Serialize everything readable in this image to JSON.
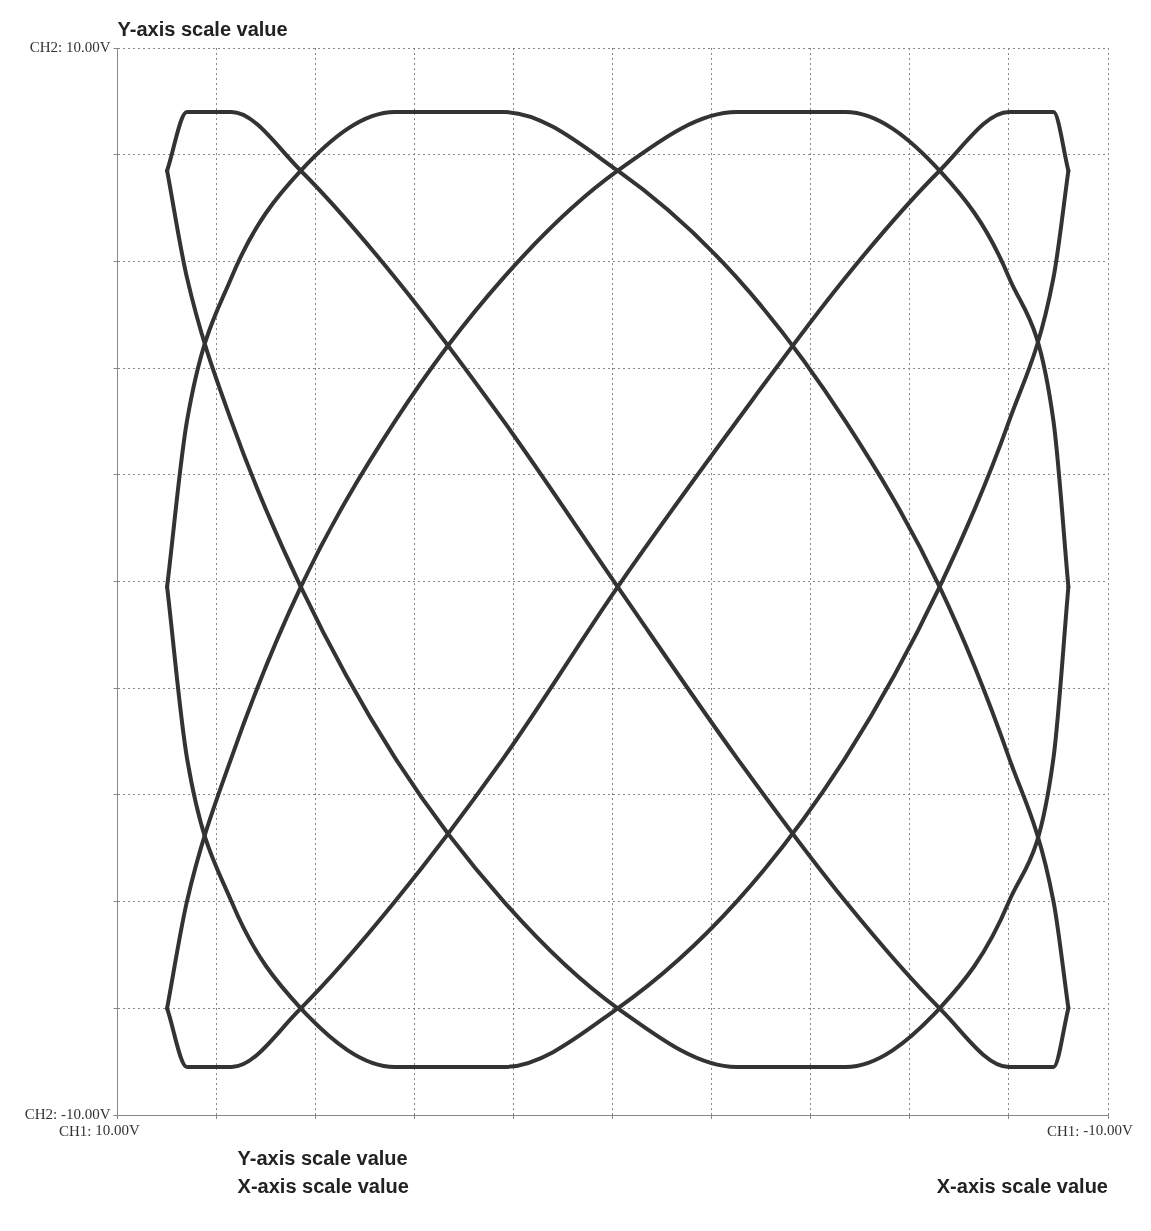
{
  "chart_data": {
    "type": "line",
    "x": [
      -9.2,
      -8.9,
      -8.0,
      -6.6,
      -4.7,
      -2.5,
      -0.1,
      2.2,
      4.4,
      6.3,
      7.7,
      8.6,
      9.0
    ],
    "series": [
      {
        "color": "#333333",
        "values": [
          -8.0,
          -9.1,
          -9.1,
          -8.0,
          -6.0,
          -3.3,
          -0.1,
          3.0,
          5.7,
          7.7,
          8.8,
          8.8,
          7.7
        ]
      },
      {
        "color": "#333333",
        "values": [
          -8.0,
          -6.0,
          -3.3,
          -0.1,
          3.0,
          5.7,
          7.7,
          8.8,
          8.8,
          7.7,
          5.7,
          3.0,
          -0.1
        ]
      },
      {
        "color": "#333333",
        "values": [
          7.7,
          5.7,
          3.0,
          -0.1,
          -3.3,
          -6.0,
          -8.0,
          -9.1,
          -9.1,
          -8.0,
          -6.0,
          -3.3,
          -0.1
        ]
      },
      {
        "color": "#333333",
        "values": [
          7.7,
          8.8,
          8.8,
          7.7,
          5.7,
          3.0,
          -0.1,
          -3.3,
          -6.0,
          -8.0,
          -9.1,
          -9.1,
          -8.0
        ]
      },
      {
        "color": "#333333",
        "values": [
          -0.1,
          3.0,
          5.7,
          7.7,
          8.8,
          8.8,
          7.7,
          5.7,
          3.0,
          -0.1,
          -3.3,
          -6.0,
          -8.0
        ]
      },
      {
        "color": "#333333",
        "values": [
          -0.1,
          -3.3,
          -6.0,
          -8.0,
          -9.1,
          -9.1,
          -8.0,
          -6.0,
          -3.3,
          -0.1,
          3.0,
          5.7,
          7.7
        ]
      }
    ],
    "xlim": [
      10,
      -10
    ],
    "xticks": [
      {
        "value": 10,
        "label": "10.00V"
      },
      {
        "value": 8,
        "label": null
      },
      {
        "value": 6,
        "label": null
      },
      {
        "value": 4,
        "label": null
      },
      {
        "value": 2,
        "label": null
      },
      {
        "value": 0,
        "label": null
      },
      {
        "value": -2,
        "label": null
      },
      {
        "value": -4,
        "label": null
      },
      {
        "value": -6,
        "label": null
      },
      {
        "value": -8,
        "label": null
      },
      {
        "value": -10,
        "label": "-10.00V"
      }
    ],
    "ylim": [
      -10,
      10
    ],
    "yticks": [
      {
        "value": -10,
        "label": "-10.00V"
      },
      {
        "value": -8,
        "label": null
      },
      {
        "value": -6,
        "label": null
      },
      {
        "value": -4,
        "label": null
      },
      {
        "value": -2,
        "label": null
      },
      {
        "value": 0,
        "label": null
      },
      {
        "value": 2,
        "label": null
      },
      {
        "value": 4,
        "label": null
      },
      {
        "value": 6,
        "label": null
      },
      {
        "value": 8,
        "label": null
      },
      {
        "value": 10,
        "label": "10.00V"
      }
    ],
    "annotations": [
      "Y-axis scale value",
      "Y-axis scale value",
      "X-axis scale value",
      "X-axis scale value",
      "CH2:",
      "CH2:",
      "CH1:",
      "CH1:"
    ],
    "grid": true,
    "marker": "none",
    "line_style": "solid"
  }
}
